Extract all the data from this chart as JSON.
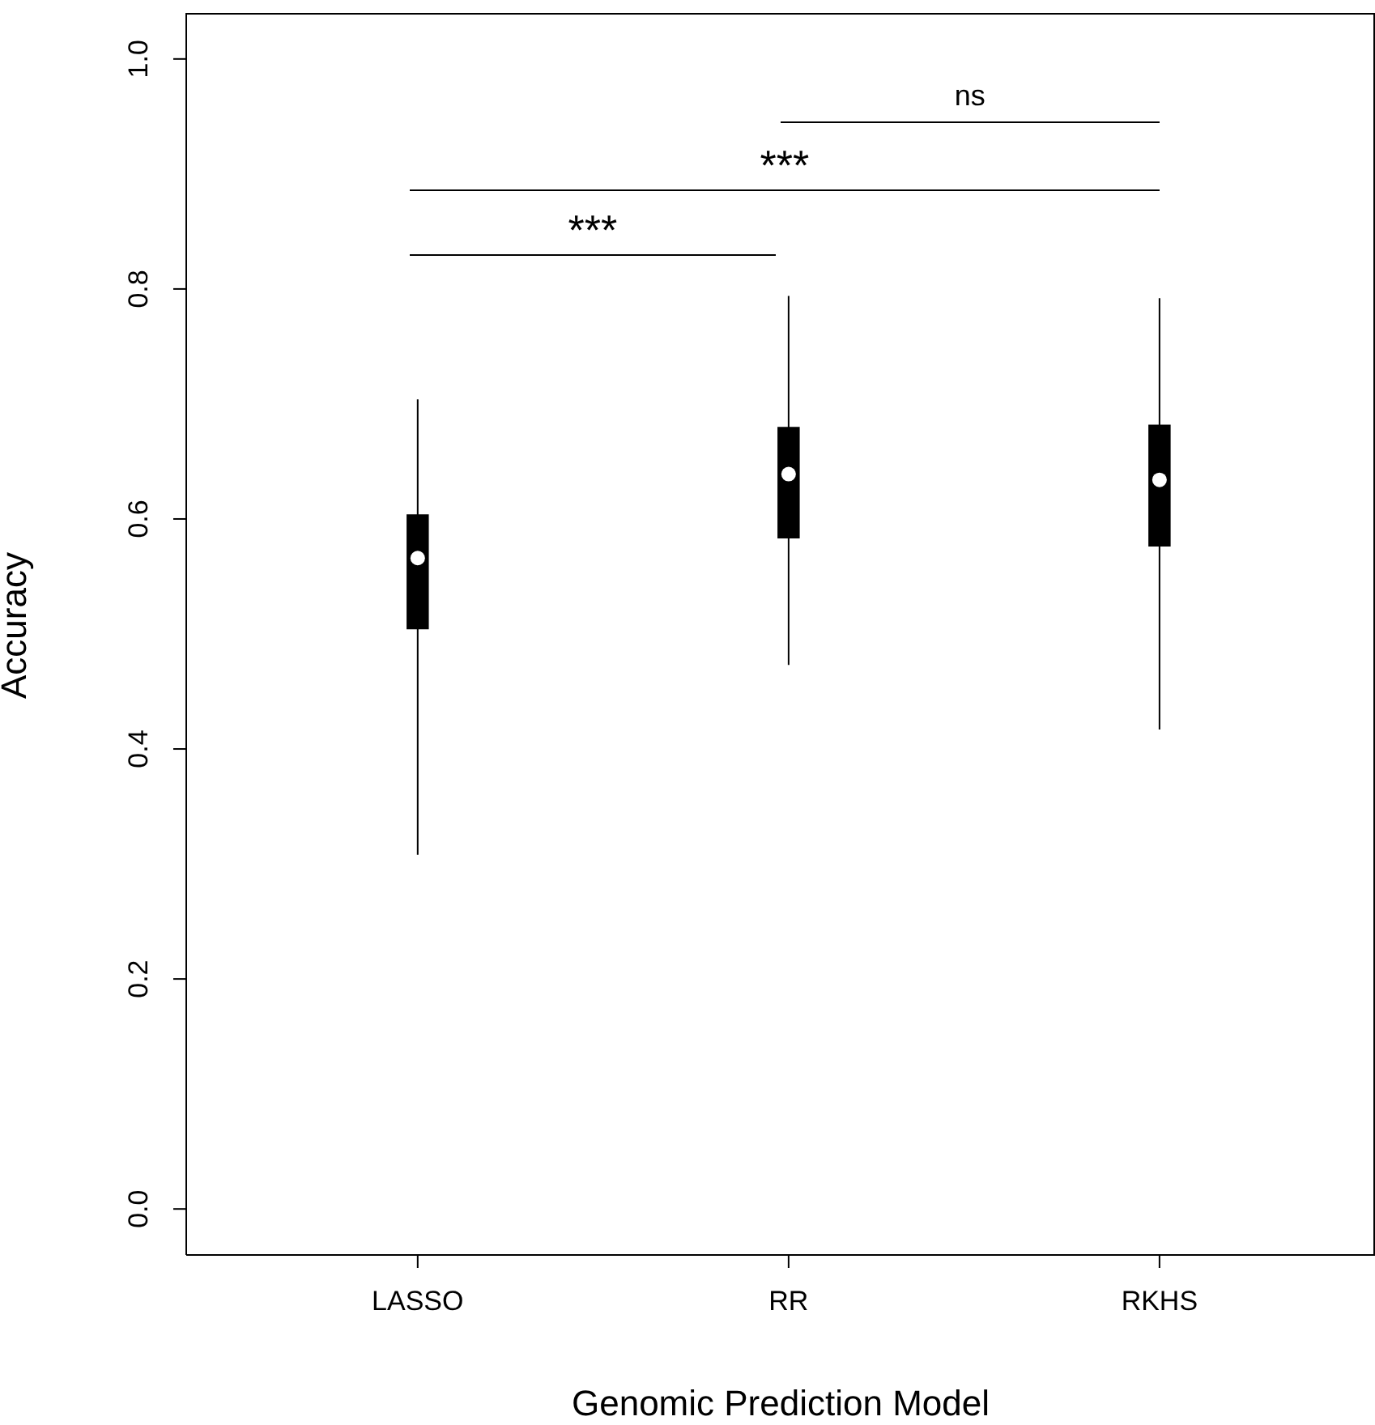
{
  "chart_data": {
    "type": "box",
    "xlabel": "Genomic Prediction Model",
    "ylabel": "Accuracy",
    "categories": [
      "LASSO",
      "RR",
      "RKHS"
    ],
    "boxes": [
      {
        "low": 0.308,
        "q1": 0.504,
        "median": 0.566,
        "q3": 0.604,
        "high": 0.704
      },
      {
        "low": 0.473,
        "q1": 0.583,
        "median": 0.639,
        "q3": 0.68,
        "high": 0.794
      },
      {
        "low": 0.417,
        "q1": 0.576,
        "median": 0.634,
        "q3": 0.682,
        "high": 0.792
      }
    ],
    "color": "#000000",
    "ylim": [
      -0.04,
      1.04
    ],
    "yticks": [
      {
        "value": 0,
        "label": "0.0"
      },
      {
        "value": 0.2,
        "label": "0.2"
      },
      {
        "value": 0.4,
        "label": "0.4"
      },
      {
        "value": 0.6,
        "label": "0.6"
      },
      {
        "value": 0.8,
        "label": "0.8"
      },
      {
        "value": 1,
        "label": "1.0"
      }
    ],
    "annotations": [
      "***",
      "***",
      "ns"
    ],
    "grid": false
  }
}
